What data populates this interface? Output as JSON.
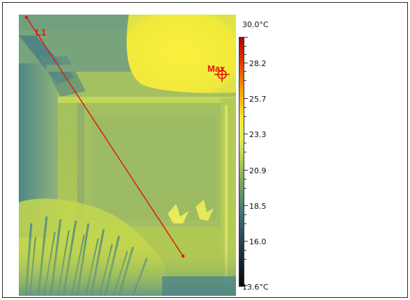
{
  "measurement": {
    "line_label": "L1",
    "max_marker_label": "Max"
  },
  "scale": {
    "max_label": "30.0°C",
    "min_label": "13.6°C",
    "ticks": [
      "28.2",
      "25.7",
      "23.3",
      "20.9",
      "18.5",
      "16.0"
    ],
    "palette": [
      "#b00000",
      "#e33a00",
      "#f5a200",
      "#f4e93e",
      "#b8d24c",
      "#5d8f6c",
      "#2b4b58",
      "#070a0c"
    ]
  }
}
